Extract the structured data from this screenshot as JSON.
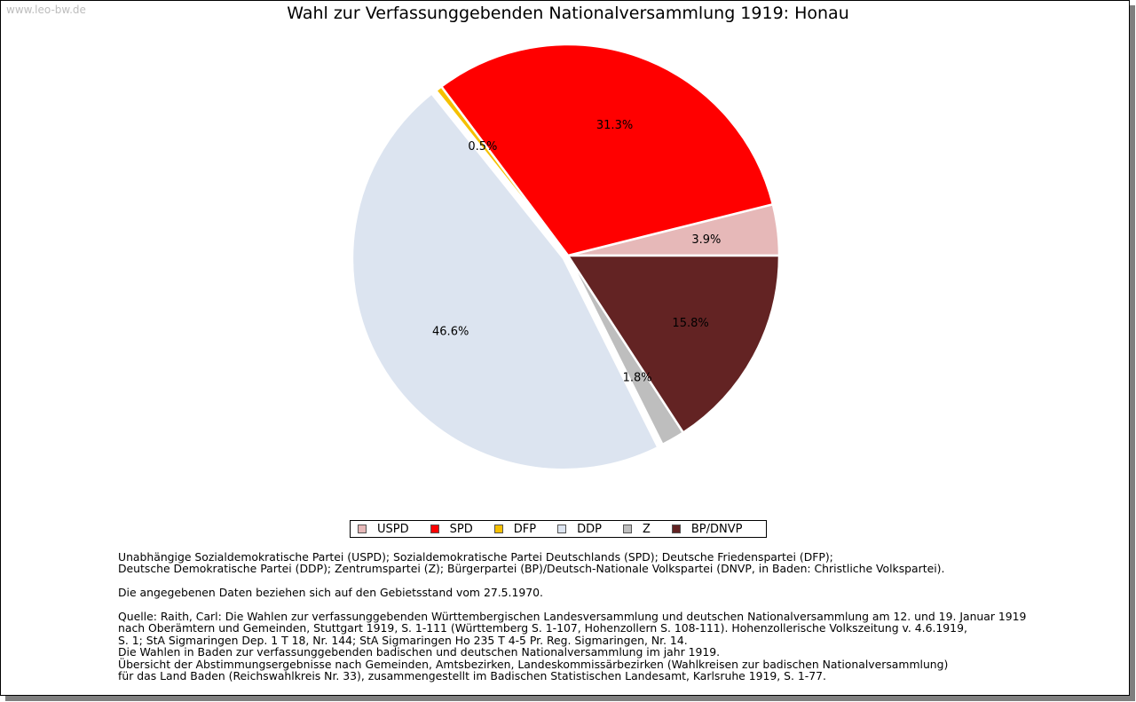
{
  "watermark": "www.leo-bw.de",
  "chart_data": {
    "type": "pie",
    "title": "Wahl zur Verfassunggebenden Nationalversammlung 1919: Honau",
    "categories": [
      "USPD",
      "SPD",
      "DFP",
      "DDP",
      "Z",
      "BP/DNVP"
    ],
    "values": [
      3.9,
      31.3,
      0.5,
      46.6,
      1.8,
      15.8
    ],
    "data_labels": [
      "3.9%",
      "31.3%",
      "0.5%",
      "46.6%",
      "1.8%",
      "15.8%"
    ],
    "colors": [
      "#e6b8b8",
      "#ff0000",
      "#f5c000",
      "#dce4f0",
      "#bebebe",
      "#632323"
    ],
    "exploded": "DDP",
    "legend_placement": "bottom-center"
  },
  "notes": {
    "parties_line1": "Unabhängige Sozialdemokratische Partei (USPD); Sozialdemokratische Partei Deutschlands (SPD); Deutsche Friedenspartei (DFP);",
    "parties_line2": "Deutsche Demokratische Partei (DDP); Zentrumspartei (Z); Bürgerpartei (BP)/Deutsch-Nationale Volkspartei (DNVP, in Baden: Christliche Volkspartei).",
    "territory": "Die angegebenen Daten beziehen sich auf den Gebietsstand vom 27.5.1970.",
    "source_1": "Quelle: Raith, Carl: Die Wahlen zur verfassunggebenden Württembergischen Landesversammlung und deutschen Nationalversammlung am 12. und 19. Januar 1919",
    "source_2": "nach Oberämtern und Gemeinden, Stuttgart 1919, S. 1-111 (Württemberg S. 1-107, Hohenzollern S. 108-111). Hohenzollerische Volkszeitung v. 4.6.1919,",
    "source_3": "S. 1; StA Sigmaringen Dep. 1 T 18, Nr. 144; StA Sigmaringen Ho 235 T 4-5 Pr. Reg. Sigmaringen, Nr. 14.",
    "source_4": "Die Wahlen in Baden zur verfassunggebenden badischen und deutschen Nationalversammlung im jahr 1919.",
    "source_5": "Übersicht der Abstimmungsergebnisse nach Gemeinden, Amtsbezirken, Landeskommissärbezirken (Wahlkreisen zur badischen Nationalversammlung)",
    "source_6": "für das Land Baden (Reichswahlkreis Nr. 33), zusammengestellt im Badischen Statistischen Landesamt, Karlsruhe 1919, S. 1-77."
  }
}
